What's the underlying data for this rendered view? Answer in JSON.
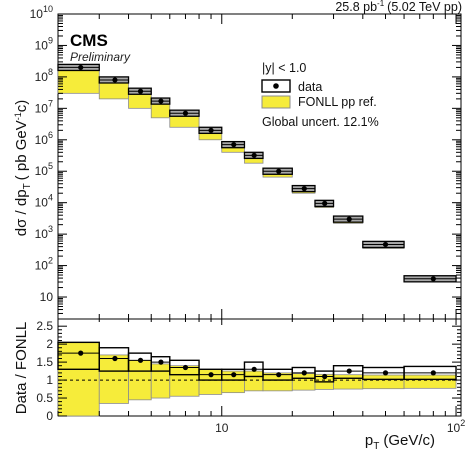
{
  "header": {
    "experiment": "CMS",
    "status": "Preliminary",
    "lumi_value": "25.8 pb",
    "lumi_exp": "-1",
    "lumi_conditions": "(5.02 TeV pp)"
  },
  "chart_data": [
    {
      "type": "scatter",
      "panel": "top",
      "xscale": "log",
      "yscale": "log",
      "xlim": [
        2,
        105
      ],
      "ylim": [
        2,
        10000000000.0
      ],
      "xlabel": "p",
      "xlabel_sub": "T",
      "xlabel_unit": "(GeV/c)",
      "ylabel": "dσ / dp",
      "ylabel_sub": "T",
      "ylabel_unit_open": "( pb GeV",
      "ylabel_unit_sup": "-1",
      "ylabel_unit_close": "c)",
      "y_ticks": [
        {
          "value": 10,
          "base": "10",
          "exp": ""
        },
        {
          "value": 100,
          "base": "10",
          "exp": "2"
        },
        {
          "value": 1000,
          "base": "10",
          "exp": "3"
        },
        {
          "value": 10000,
          "base": "10",
          "exp": "4"
        },
        {
          "value": 100000,
          "base": "10",
          "exp": "5"
        },
        {
          "value": 1000000,
          "base": "10",
          "exp": "6"
        },
        {
          "value": 10000000,
          "base": "10",
          "exp": "7"
        },
        {
          "value": 100000000,
          "base": "10",
          "exp": "8"
        },
        {
          "value": 1000000000,
          "base": "10",
          "exp": "9"
        },
        {
          "value": 10000000000,
          "base": "10",
          "exp": "10"
        }
      ],
      "legend": {
        "placement": "top-right",
        "header": "|y| < 1.0",
        "entries": [
          "data",
          "FONLL pp ref."
        ],
        "note": "Global uncert. 12.1%"
      },
      "bins": [
        {
          "lo": 2,
          "hi": 3,
          "x": 2.5,
          "y": 200000000.0,
          "fonll_lo": 30000000.0,
          "fonll_hi": 220000000.0
        },
        {
          "lo": 3,
          "hi": 4,
          "x": 3.5,
          "y": 80000000.0,
          "fonll_lo": 20000000.0,
          "fonll_hi": 75000000.0
        },
        {
          "lo": 4,
          "hi": 5,
          "x": 4.5,
          "y": 35000000.0,
          "fonll_lo": 10000000.0,
          "fonll_hi": 33000000.0
        },
        {
          "lo": 5,
          "hi": 6,
          "x": 5.5,
          "y": 17000000.0,
          "fonll_lo": 5000000.0,
          "fonll_hi": 15000000.0
        },
        {
          "lo": 6,
          "hi": 8,
          "x": 7,
          "y": 7000000.0,
          "fonll_lo": 2500000.0,
          "fonll_hi": 6500000.0
        },
        {
          "lo": 8,
          "hi": 10,
          "x": 9,
          "y": 2000000.0,
          "fonll_lo": 1000000.0,
          "fonll_hi": 2000000.0
        },
        {
          "lo": 10,
          "hi": 12.5,
          "x": 11.25,
          "y": 700000.0,
          "fonll_lo": 400000.0,
          "fonll_hi": 750000.0
        },
        {
          "lo": 12.5,
          "hi": 15,
          "x": 13.75,
          "y": 320000.0,
          "fonll_lo": 180000.0,
          "fonll_hi": 300000.0
        },
        {
          "lo": 15,
          "hi": 20,
          "x": 17.5,
          "y": 100000.0,
          "fonll_lo": 65000.0,
          "fonll_hi": 105000.0
        },
        {
          "lo": 20,
          "hi": 25,
          "x": 22.5,
          "y": 28000.0,
          "fonll_lo": 20000.0,
          "fonll_hi": 29000.0
        },
        {
          "lo": 25,
          "hi": 30,
          "x": 27.5,
          "y": 9500.0,
          "fonll_lo": 7000.0,
          "fonll_hi": 10000.0
        },
        {
          "lo": 30,
          "hi": 40,
          "x": 35,
          "y": 3000.0,
          "fonll_lo": 2200.0,
          "fonll_hi": 3000.0
        },
        {
          "lo": 40,
          "hi": 60,
          "x": 50,
          "y": 470.0,
          "fonll_lo": 350.0,
          "fonll_hi": 480.0
        },
        {
          "lo": 60,
          "hi": 100,
          "x": 80,
          "y": 38.0,
          "fonll_lo": 30.0,
          "fonll_hi": 40.0
        }
      ]
    },
    {
      "type": "scatter",
      "panel": "bottom",
      "xscale": "log",
      "yscale": "linear",
      "xlim": [
        2,
        105
      ],
      "ylim": [
        0,
        2.7
      ],
      "ylabel": "Data / FONLL",
      "y_ticks": [
        "0",
        "0.5",
        "1",
        "1.5",
        "2",
        "2.5"
      ],
      "x_ticks": [
        {
          "value": 10,
          "base": "10",
          "exp": ""
        },
        {
          "value": 100,
          "base": "10",
          "exp": "2"
        }
      ],
      "reference_line": 1,
      "bins": [
        {
          "lo": 2,
          "hi": 3,
          "x": 2.5,
          "ratio": 1.75,
          "syst_lo": 1.3,
          "syst_hi": 2.05,
          "band_lo": 0.0,
          "band_hi": 2.05
        },
        {
          "lo": 3,
          "hi": 4,
          "x": 3.5,
          "ratio": 1.6,
          "syst_lo": 1.25,
          "syst_hi": 1.9,
          "band_lo": 0.35,
          "band_hi": 1.7
        },
        {
          "lo": 4,
          "hi": 5,
          "x": 4.5,
          "ratio": 1.55,
          "syst_lo": 1.25,
          "syst_hi": 1.75,
          "band_lo": 0.45,
          "band_hi": 1.55
        },
        {
          "lo": 5,
          "hi": 6,
          "x": 5.5,
          "ratio": 1.5,
          "syst_lo": 1.25,
          "syst_hi": 1.65,
          "band_lo": 0.5,
          "band_hi": 1.45
        },
        {
          "lo": 6,
          "hi": 8,
          "x": 7,
          "ratio": 1.35,
          "syst_lo": 1.15,
          "syst_hi": 1.55,
          "band_lo": 0.55,
          "band_hi": 1.4
        },
        {
          "lo": 8,
          "hi": 10,
          "x": 9,
          "ratio": 1.15,
          "syst_lo": 1.0,
          "syst_hi": 1.3,
          "band_lo": 0.6,
          "band_hi": 1.3
        },
        {
          "lo": 10,
          "hi": 12.5,
          "x": 11.25,
          "ratio": 1.15,
          "syst_lo": 1.0,
          "syst_hi": 1.3,
          "band_lo": 0.65,
          "band_hi": 1.25
        },
        {
          "lo": 12.5,
          "hi": 15,
          "x": 13.75,
          "ratio": 1.3,
          "syst_lo": 1.1,
          "syst_hi": 1.5,
          "band_lo": 0.7,
          "band_hi": 1.25
        },
        {
          "lo": 15,
          "hi": 20,
          "x": 17.5,
          "ratio": 1.15,
          "syst_lo": 1.0,
          "syst_hi": 1.3,
          "band_lo": 0.7,
          "band_hi": 1.2
        },
        {
          "lo": 20,
          "hi": 25,
          "x": 22.5,
          "ratio": 1.2,
          "syst_lo": 1.05,
          "syst_hi": 1.35,
          "band_lo": 0.72,
          "band_hi": 1.18
        },
        {
          "lo": 25,
          "hi": 30,
          "x": 27.5,
          "ratio": 1.1,
          "syst_lo": 0.95,
          "syst_hi": 1.25,
          "band_lo": 0.74,
          "band_hi": 1.16
        },
        {
          "lo": 30,
          "hi": 40,
          "x": 35,
          "ratio": 1.25,
          "syst_lo": 1.05,
          "syst_hi": 1.4,
          "band_lo": 0.75,
          "band_hi": 1.15
        },
        {
          "lo": 40,
          "hi": 60,
          "x": 50,
          "ratio": 1.2,
          "syst_lo": 1.02,
          "syst_hi": 1.35,
          "band_lo": 0.76,
          "band_hi": 1.14
        },
        {
          "lo": 60,
          "hi": 100,
          "x": 80,
          "ratio": 1.2,
          "syst_lo": 1.02,
          "syst_hi": 1.38,
          "band_lo": 0.77,
          "band_hi": 1.14
        }
      ]
    }
  ],
  "colors": {
    "fonll_fill": "#f6ec3a",
    "fonll_edge": "#8c8c8c",
    "data_box_fill": "#a8a8a8",
    "data_box_edge": "#000000",
    "marker": "#000000",
    "axis": "#000000"
  }
}
